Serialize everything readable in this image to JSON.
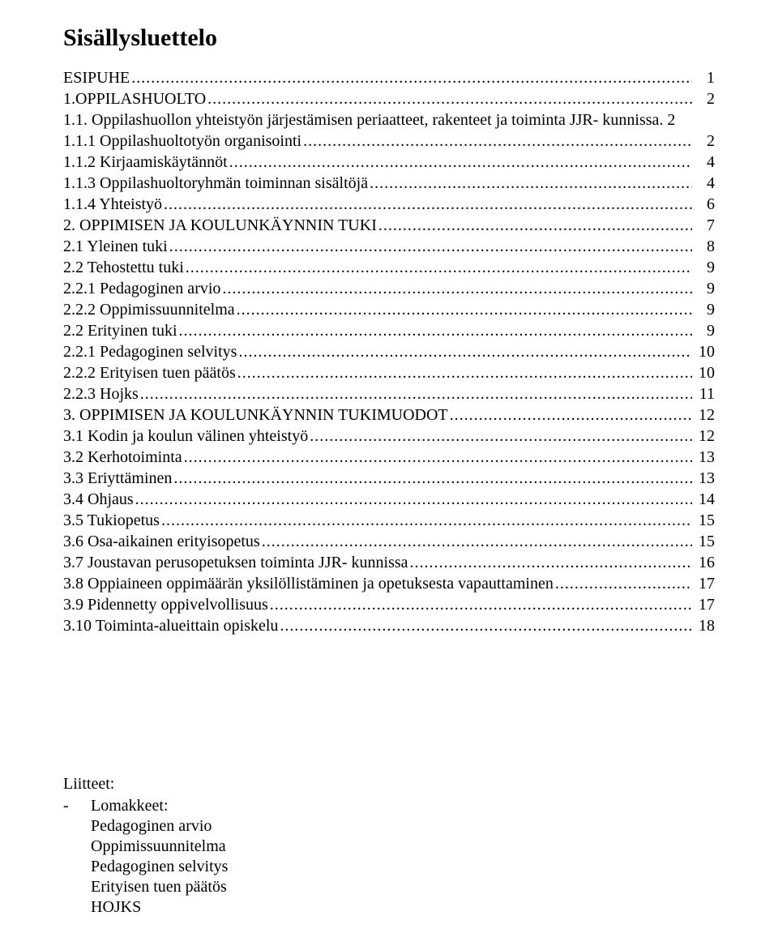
{
  "title": "Sisällysluettelo",
  "toc": [
    {
      "label": "ESIPUHE",
      "page": "1",
      "indent": 0
    },
    {
      "label": "1.OPPILASHUOLTO",
      "page": "2",
      "indent": 0
    },
    {
      "label": "1.1. Oppilashuollon yhteistyön järjestämisen periaatteet, rakenteet ja toiminta JJR- kunnissa.  2",
      "page": "",
      "indent": 1,
      "nodots": true
    },
    {
      "label": "1.1.1 Oppilashuoltotyön organisointi",
      "page": "2",
      "indent": 2
    },
    {
      "label": "1.1.2 Kirjaamiskäytännöt",
      "page": "4",
      "indent": 2
    },
    {
      "label": "1.1.3 Oppilashuoltoryhmän toiminnan sisältöjä",
      "page": "4",
      "indent": 2
    },
    {
      "label": "1.1.4 Yhteistyö",
      "page": "6",
      "indent": 2
    },
    {
      "label": "2. OPPIMISEN JA KOULUNKÄYNNIN TUKI",
      "page": "7",
      "indent": 0
    },
    {
      "label": "2.1 Yleinen tuki",
      "page": " 8",
      "indent": 1
    },
    {
      "label": "2.2 Tehostettu tuki",
      "page": " 9",
      "indent": 1
    },
    {
      "label": "2.2.1  Pedagoginen arvio",
      "page": "9",
      "indent": 2
    },
    {
      "label": "2.2.2 Oppimissuunnitelma",
      "page": "9",
      "indent": 2
    },
    {
      "label": "2.2 Erityinen tuki",
      "page": " 9",
      "indent": 1
    },
    {
      "label": "2.2.1  Pedagoginen selvitys",
      "page": "10",
      "indent": 2
    },
    {
      "label": "2.2.2 Erityisen tuen päätös",
      "page": "10",
      "indent": 2
    },
    {
      "label": "2.2.3 Hojks",
      "page": "11",
      "indent": 2
    },
    {
      "label": "3. OPPIMISEN  JA  KOULUNKÄYNNIN  TUKIMUODOT",
      "page": "12",
      "indent": 0
    },
    {
      "label": "3.1 Kodin ja koulun välinen yhteistyö",
      "page": " 12",
      "indent": 1
    },
    {
      "label": "3.2 Kerhotoiminta",
      "page": " 13",
      "indent": 1
    },
    {
      "label": "3.3 Eriyttäminen",
      "page": " 13",
      "indent": 1
    },
    {
      "label": "3.4  Ohjaus",
      "page": " 14",
      "indent": 1
    },
    {
      "label": "3.5  Tukiopetus",
      "page": " 15",
      "indent": 1
    },
    {
      "label": "3.6 Osa-aikainen erityisopetus",
      "page": " 15",
      "indent": 1
    },
    {
      "label": "3.7 Joustavan perusopetuksen toiminta JJR- kunnissa",
      "page": " 16",
      "indent": 1
    },
    {
      "label": "3.8 Oppiaineen oppimäärän yksilöllistäminen ja opetuksesta vapauttaminen",
      "page": " 17",
      "indent": 1
    },
    {
      "label": "3.9 Pidennetty oppivelvollisuus",
      "page": " 17",
      "indent": 1
    },
    {
      "label": "3.10 Toiminta-alueittain opiskelu",
      "page": " 18",
      "indent": 1
    }
  ],
  "attachments": {
    "title": "Liitteet:",
    "dash": "-",
    "heading": "Lomakkeet:",
    "items": [
      "Pedagoginen arvio",
      "Oppimissuunnitelma",
      "Pedagoginen selvitys",
      "Erityisen tuen päätös",
      "HOJKS"
    ]
  }
}
